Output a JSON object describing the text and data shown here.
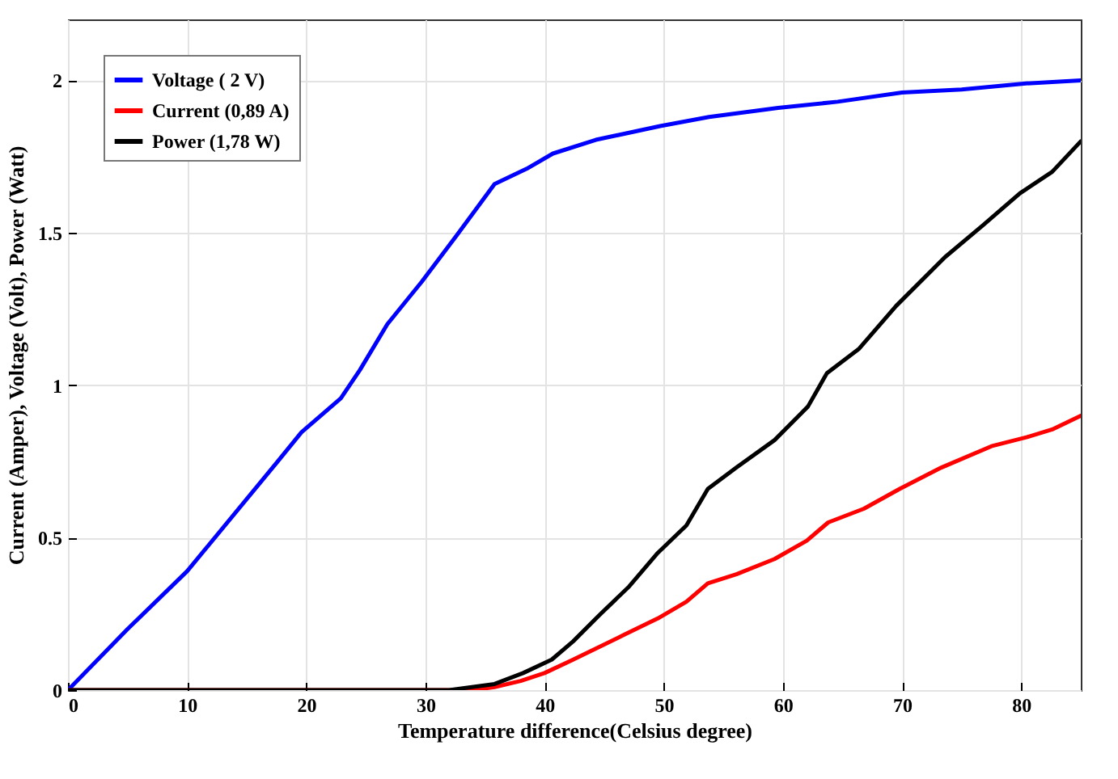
{
  "chart_data": {
    "type": "line",
    "xlabel": "Temperature difference(Celsius degree)",
    "ylabel": "Current (Amper), Voltage (Volt), Power (Watt)",
    "xlim": [
      0,
      85
    ],
    "ylim": [
      0,
      2.2
    ],
    "xticks": [
      0,
      10,
      20,
      30,
      40,
      50,
      60,
      70,
      80
    ],
    "yticks": [
      0,
      0.5,
      1,
      1.5,
      2
    ],
    "grid": true,
    "legend": "top left",
    "series": [
      {
        "name": "Voltage ( 2 V)",
        "color": "#0000ff",
        "x": [
          0,
          5,
          10,
          17.5,
          19.6,
          22.9,
          24.5,
          26.8,
          29.7,
          32.6,
          35.8,
          38.5,
          40.7,
          44.3,
          49.7,
          53.8,
          59.6,
          64.6,
          70,
          75,
          80.4,
          85
        ],
        "values": [
          0,
          0.2,
          0.39,
          0.745,
          0.846,
          0.957,
          1.05,
          1.2,
          1.34,
          1.49,
          1.66,
          1.71,
          1.76,
          1.805,
          1.85,
          1.88,
          1.91,
          1.93,
          1.96,
          1.97,
          1.99,
          2.0
        ]
      },
      {
        "name": "Current (0,89 A)",
        "color": "#ff0000",
        "x": [
          0,
          34,
          35.8,
          38,
          40,
          42.4,
          46.6,
          49.5,
          51.9,
          53.7,
          56.1,
          59.3,
          62,
          63.8,
          66.8,
          69.8,
          73.3,
          77.5,
          80.5,
          82.6,
          85
        ],
        "values": [
          0,
          0,
          0.01,
          0.03,
          0.056,
          0.1,
          0.18,
          0.235,
          0.29,
          0.35,
          0.38,
          0.43,
          0.49,
          0.55,
          0.595,
          0.66,
          0.73,
          0.8,
          0.83,
          0.855,
          0.9
        ]
      },
      {
        "name": "Power (1,78 W)",
        "color": "#000000",
        "x": [
          0,
          32,
          35.8,
          38.2,
          40.6,
          42.4,
          44.7,
          47.1,
          49.5,
          51.9,
          53.7,
          56.1,
          59.3,
          62.1,
          63.7,
          66.4,
          69.5,
          73.6,
          76.8,
          79.9,
          82.6,
          85
        ],
        "values": [
          0,
          0,
          0.02,
          0.056,
          0.1,
          0.16,
          0.25,
          0.34,
          0.45,
          0.54,
          0.66,
          0.73,
          0.82,
          0.93,
          1.04,
          1.12,
          1.26,
          1.42,
          1.525,
          1.63,
          1.7,
          1.8
        ]
      }
    ]
  }
}
